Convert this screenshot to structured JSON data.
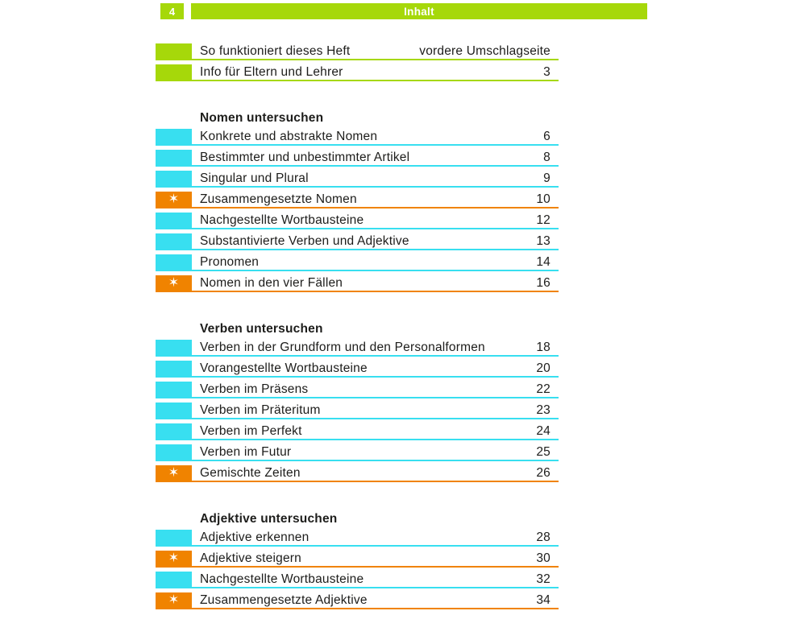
{
  "header": {
    "page_number": "4",
    "title": "Inhalt"
  },
  "colors": {
    "green": "#a6d80a",
    "cyan": "#38dff0",
    "orange": "#f08300",
    "text": "#1d1d1b"
  },
  "icons": {
    "star": "✶"
  },
  "intro_rows": [
    {
      "label": "So funktioniert dieses Heft",
      "page": "vordere Umschlagseite",
      "color": "green",
      "star": false
    },
    {
      "label": "Info für Eltern und Lehrer",
      "page": "3",
      "color": "green",
      "star": false
    }
  ],
  "sections": [
    {
      "title": "Nomen untersuchen",
      "rows": [
        {
          "label": "Konkrete und abstrakte Nomen",
          "page": "6",
          "color": "cyan",
          "star": false
        },
        {
          "label": "Bestimmter und unbestimmter Artikel",
          "page": "8",
          "color": "cyan",
          "star": false
        },
        {
          "label": "Singular und Plural",
          "page": "9",
          "color": "cyan",
          "star": false
        },
        {
          "label": "Zusammengesetzte Nomen",
          "page": "10",
          "color": "orange",
          "star": true
        },
        {
          "label": "Nachgestellte Wortbausteine",
          "page": "12",
          "color": "cyan",
          "star": false
        },
        {
          "label": "Substantivierte Verben und Adjektive",
          "page": "13",
          "color": "cyan",
          "star": false
        },
        {
          "label": "Pronomen",
          "page": "14",
          "color": "cyan",
          "star": false
        },
        {
          "label": "Nomen in den vier Fällen",
          "page": "16",
          "color": "orange",
          "star": true
        }
      ]
    },
    {
      "title": "Verben untersuchen",
      "rows": [
        {
          "label": "Verben in der Grundform und den Personalformen",
          "page": "18",
          "color": "cyan",
          "star": false
        },
        {
          "label": "Vorangestellte Wortbausteine",
          "page": "20",
          "color": "cyan",
          "star": false
        },
        {
          "label": "Verben im Präsens",
          "page": "22",
          "color": "cyan",
          "star": false
        },
        {
          "label": "Verben im Präteritum",
          "page": "23",
          "color": "cyan",
          "star": false
        },
        {
          "label": "Verben im Perfekt",
          "page": "24",
          "color": "cyan",
          "star": false
        },
        {
          "label": "Verben im Futur",
          "page": "25",
          "color": "cyan",
          "star": false
        },
        {
          "label": "Gemischte Zeiten",
          "page": "26",
          "color": "orange",
          "star": true
        }
      ]
    },
    {
      "title": "Adjektive untersuchen",
      "rows": [
        {
          "label": "Adjektive erkennen",
          "page": "28",
          "color": "cyan",
          "star": false
        },
        {
          "label": "Adjektive steigern",
          "page": "30",
          "color": "orange",
          "star": true
        },
        {
          "label": "Nachgestellte Wortbausteine",
          "page": "32",
          "color": "cyan",
          "star": false
        },
        {
          "label": "Zusammengesetzte Adjektive",
          "page": "34",
          "color": "orange",
          "star": true
        }
      ]
    }
  ]
}
